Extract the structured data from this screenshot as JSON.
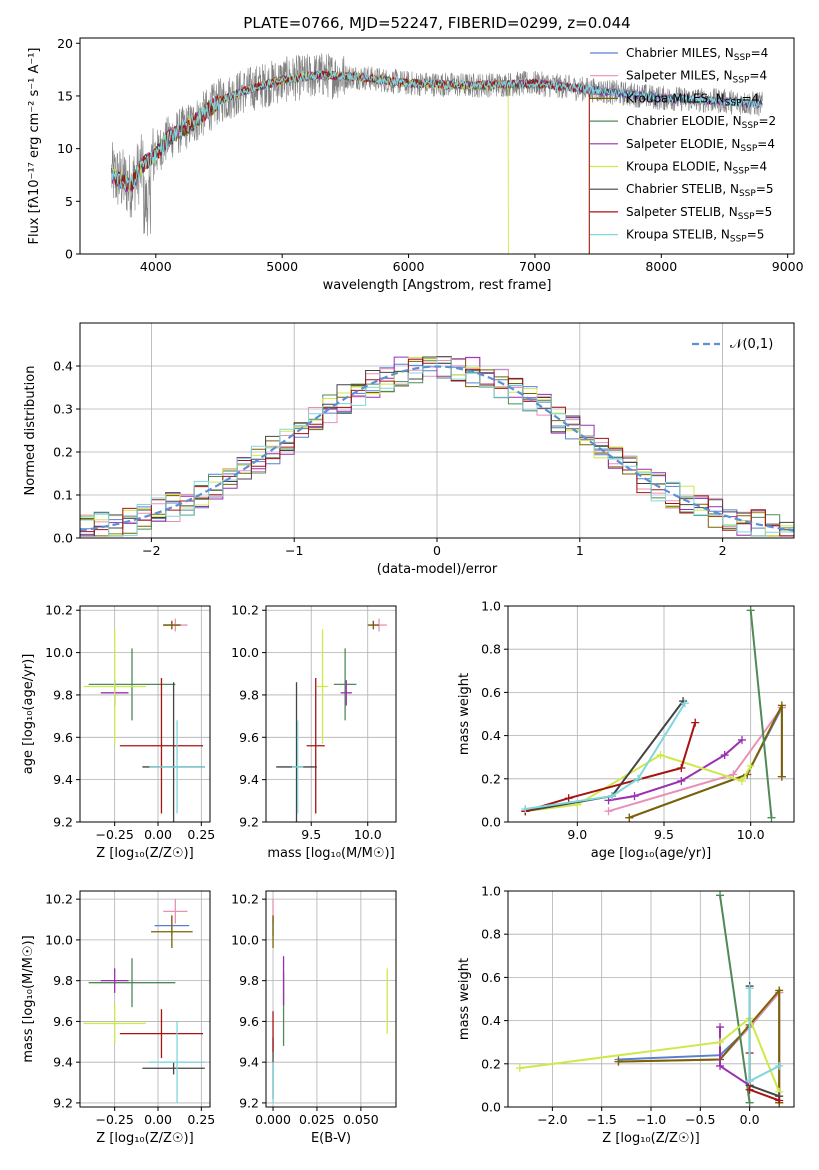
{
  "figure": {
    "title": "PLATE=0766, MJD=52247, FIBERID=0299, z=0.044"
  },
  "models": [
    {
      "name": "Chabrier MILES",
      "nssp": "4",
      "color": "#5a7fd1"
    },
    {
      "name": "Salpeter MILES",
      "nssp": "4",
      "color": "#e890b8"
    },
    {
      "name": "Kroupa MILES",
      "nssp": "4",
      "color": "#7a6200"
    },
    {
      "name": "Chabrier ELODIE",
      "nssp": "2",
      "color": "#4f8a56"
    },
    {
      "name": "Salpeter ELODIE",
      "nssp": "4",
      "color": "#9a2fb0"
    },
    {
      "name": "Kroupa ELODIE",
      "nssp": "4",
      "color": "#cfe84a"
    },
    {
      "name": "Chabrier STELIB",
      "nssp": "5",
      "color": "#444444"
    },
    {
      "name": "Salpeter STELIB",
      "nssp": "5",
      "color": "#a81212"
    },
    {
      "name": "Kroupa STELIB",
      "nssp": "5",
      "color": "#7fd6dc"
    }
  ],
  "chart_data": [
    {
      "id": "spectrum",
      "type": "line",
      "xlabel": "wavelength [Angstrom, rest frame]",
      "ylabel": "Flux [fλ10⁻¹⁷ erg cm⁻² s⁻¹ A⁻¹]",
      "xlim": [
        3400,
        9050
      ],
      "ylim": [
        0,
        20.5
      ],
      "xticks": [
        4000,
        5000,
        6000,
        7000,
        8000,
        9000
      ],
      "yticks": [
        0,
        5,
        10,
        15,
        20
      ],
      "data_color": "#808080",
      "data_envelope": {
        "x": [
          3650,
          3800,
          3900,
          4000,
          4100,
          4300,
          4500,
          4700,
          5000,
          5300,
          5600,
          6000,
          6500,
          7000,
          7500,
          8000,
          8500,
          8800
        ],
        "y": [
          7.5,
          6.5,
          8.5,
          9.5,
          11.0,
          12.5,
          14.5,
          15.5,
          16.5,
          17.0,
          16.8,
          16.2,
          16.0,
          16.2,
          15.5,
          14.8,
          14.5,
          14.2
        ]
      },
      "legend_position": "upper-right"
    },
    {
      "id": "residuals",
      "type": "step-histogram",
      "xlabel": "(data-model)/error",
      "ylabel": "Normed distribution",
      "xlim": [
        -2.5,
        2.5
      ],
      "ylim": [
        0,
        0.5
      ],
      "xticks": [
        -2,
        -1,
        0,
        1,
        2
      ],
      "yticks": [
        0.0,
        0.1,
        0.2,
        0.3,
        0.4
      ],
      "grid": true,
      "bin_width": 0.1,
      "reference_curve": {
        "label": "𝒩(0,1)",
        "style": "dashed",
        "color": "#5b8fd6"
      },
      "legend_position": "upper-right"
    },
    {
      "id": "z-vs-age",
      "type": "errorbar",
      "xlabel": "Z [log₁₀(Z/Z☉)]",
      "ylabel": "age  [log₁₀(age/yr)]",
      "xlim": [
        -0.45,
        0.3
      ],
      "ylim": [
        9.2,
        10.22
      ],
      "xticks": [
        -0.25,
        0.0,
        0.25
      ],
      "xticklabels": [
        "−0.25",
        "0.00",
        "0.25"
      ],
      "yticks": [
        9.2,
        9.4,
        9.6,
        9.8,
        10.0,
        10.2
      ],
      "grid": true,
      "points": [
        {
          "model": 0,
          "x": 0.08,
          "y": 10.13,
          "xerr": 0.05,
          "yerr": 0.02
        },
        {
          "model": 1,
          "x": 0.1,
          "y": 10.13,
          "xerr": 0.07,
          "yerr": 0.03
        },
        {
          "model": 2,
          "x": 0.08,
          "y": 10.13,
          "xerr": 0.05,
          "yerr": 0.02
        },
        {
          "model": 3,
          "x": -0.15,
          "y": 9.85,
          "xerr": 0.25,
          "yerr": 0.17
        },
        {
          "model": 4,
          "x": -0.25,
          "y": 9.81,
          "xerr": 0.08,
          "yerr": 0.06
        },
        {
          "model": 5,
          "x": -0.25,
          "y": 9.84,
          "xerr": 0.18,
          "yerr": 0.27
        },
        {
          "model": 6,
          "x": 0.09,
          "y": 9.46,
          "xerr": 0.18,
          "yerr": 0.4
        },
        {
          "model": 7,
          "x": 0.02,
          "y": 9.56,
          "xerr": 0.24,
          "yerr": 0.32
        },
        {
          "model": 8,
          "x": 0.11,
          "y": 9.46,
          "xerr": 0.16,
          "yerr": 0.22
        }
      ]
    },
    {
      "id": "mass-vs-age",
      "type": "errorbar",
      "xlabel": "mass [log₁₀(M/M☉)]",
      "ylabel": "",
      "xlim": [
        9.1,
        10.25
      ],
      "ylim": [
        9.2,
        10.22
      ],
      "xticks": [
        9.5,
        10.0
      ],
      "xticklabels": [
        "9.5",
        "10.0"
      ],
      "yticks": [
        9.2,
        9.4,
        9.6,
        9.8,
        10.0,
        10.2
      ],
      "grid": true,
      "points": [
        {
          "model": 0,
          "x": 10.05,
          "y": 10.13,
          "xerr": 0.05,
          "yerr": 0.02
        },
        {
          "model": 1,
          "x": 10.1,
          "y": 10.13,
          "xerr": 0.07,
          "yerr": 0.03
        },
        {
          "model": 2,
          "x": 10.05,
          "y": 10.13,
          "xerr": 0.05,
          "yerr": 0.02
        },
        {
          "model": 3,
          "x": 9.8,
          "y": 9.85,
          "xerr": 0.1,
          "yerr": 0.17
        },
        {
          "model": 4,
          "x": 9.81,
          "y": 9.81,
          "xerr": 0.05,
          "yerr": 0.06
        },
        {
          "model": 5,
          "x": 9.6,
          "y": 9.84,
          "xerr": 0.05,
          "yerr": 0.27
        },
        {
          "model": 6,
          "x": 9.37,
          "y": 9.46,
          "xerr": 0.18,
          "yerr": 0.4
        },
        {
          "model": 7,
          "x": 9.54,
          "y": 9.56,
          "xerr": 0.08,
          "yerr": 0.32
        },
        {
          "model": 8,
          "x": 9.38,
          "y": 9.46,
          "xerr": 0.05,
          "yerr": 0.22
        }
      ]
    },
    {
      "id": "age-vs-weight",
      "type": "line",
      "xlabel": "age  [log₁₀(age/yr)]",
      "ylabel": "mass weight",
      "xlim": [
        8.6,
        10.25
      ],
      "ylim": [
        0,
        1.0
      ],
      "xticks": [
        9.0,
        9.5,
        10.0
      ],
      "yticks": [
        0.0,
        0.2,
        0.4,
        0.6,
        0.8,
        1.0
      ],
      "grid": true,
      "series": [
        {
          "model": 0,
          "x": [
            9.3,
            9.98,
            10.18,
            10.18
          ],
          "y": [
            0.02,
            0.22,
            0.53,
            0.21
          ]
        },
        {
          "model": 1,
          "x": [
            9.18,
            9.9,
            10.18,
            10.18
          ],
          "y": [
            0.05,
            0.22,
            0.53,
            0.21
          ]
        },
        {
          "model": 2,
          "x": [
            9.3,
            9.98,
            10.18,
            10.18
          ],
          "y": [
            0.02,
            0.22,
            0.54,
            0.21
          ]
        },
        {
          "model": 3,
          "x": [
            10.0,
            10.12
          ],
          "y": [
            0.98,
            0.02
          ]
        },
        {
          "model": 4,
          "x": [
            9.18,
            9.33,
            9.6,
            9.85,
            9.95
          ],
          "y": [
            0.1,
            0.12,
            0.19,
            0.31,
            0.38
          ]
        },
        {
          "model": 5,
          "x": [
            8.7,
            9.0,
            9.48,
            9.95,
            10.0
          ],
          "y": [
            0.05,
            0.08,
            0.31,
            0.19,
            0.26
          ]
        },
        {
          "model": 6,
          "x": [
            8.7,
            9.2,
            9.61
          ],
          "y": [
            0.05,
            0.12,
            0.56
          ]
        },
        {
          "model": 7,
          "x": [
            8.7,
            8.95,
            9.6,
            9.68
          ],
          "y": [
            0.05,
            0.11,
            0.25,
            0.46
          ]
        },
        {
          "model": 8,
          "x": [
            8.7,
            9.2,
            9.35,
            9.62
          ],
          "y": [
            0.06,
            0.12,
            0.2,
            0.55
          ]
        }
      ]
    },
    {
      "id": "z-vs-mass",
      "type": "errorbar",
      "xlabel": "Z [log₁₀(Z/Z☉)]",
      "ylabel": "mass [log₁₀(M/M☉)]",
      "xlim": [
        -0.45,
        0.3
      ],
      "ylim": [
        9.18,
        10.24
      ],
      "xticks": [
        -0.25,
        0.0,
        0.25
      ],
      "xticklabels": [
        "−0.25",
        "0.00",
        "0.25"
      ],
      "yticks": [
        9.2,
        9.4,
        9.6,
        9.8,
        10.0,
        10.2
      ],
      "grid": true,
      "points": [
        {
          "model": 0,
          "x": 0.08,
          "y": 10.07,
          "xerr": 0.1,
          "yerr": 0.05
        },
        {
          "model": 1,
          "x": 0.1,
          "y": 10.14,
          "xerr": 0.07,
          "yerr": 0.06
        },
        {
          "model": 2,
          "x": 0.08,
          "y": 10.04,
          "xerr": 0.12,
          "yerr": 0.08
        },
        {
          "model": 3,
          "x": -0.15,
          "y": 9.79,
          "xerr": 0.25,
          "yerr": 0.12
        },
        {
          "model": 4,
          "x": -0.25,
          "y": 9.8,
          "xerr": 0.08,
          "yerr": 0.06
        },
        {
          "model": 5,
          "x": -0.25,
          "y": 9.59,
          "xerr": 0.18,
          "yerr": 0.1
        },
        {
          "model": 6,
          "x": 0.09,
          "y": 9.37,
          "xerr": 0.18,
          "yerr": 0.03
        },
        {
          "model": 7,
          "x": 0.02,
          "y": 9.54,
          "xerr": 0.24,
          "yerr": 0.12
        },
        {
          "model": 8,
          "x": 0.11,
          "y": 9.4,
          "xerr": 0.16,
          "yerr": 0.2
        }
      ]
    },
    {
      "id": "ebv-vs-mass",
      "type": "errorbar",
      "xlabel": "E(B-V)",
      "ylabel": "",
      "xlim": [
        -0.004,
        0.07
      ],
      "ylim": [
        9.18,
        10.24
      ],
      "xticks": [
        0.0,
        0.025,
        0.05
      ],
      "xticklabels": [
        "0.000",
        "0.025",
        "0.050"
      ],
      "yticks": [
        9.2,
        9.4,
        9.6,
        9.8,
        10.0,
        10.2
      ],
      "grid": true,
      "points": [
        {
          "model": 0,
          "x": 0.0,
          "y": 10.07,
          "xerr": 0.0,
          "yerr": 0.05
        },
        {
          "model": 1,
          "x": 0.0,
          "y": 10.14,
          "xerr": 0.0,
          "yerr": 0.06
        },
        {
          "model": 2,
          "x": 0.0,
          "y": 10.04,
          "xerr": 0.0,
          "yerr": 0.08
        },
        {
          "model": 3,
          "x": 0.006,
          "y": 9.66,
          "xerr": 0.0,
          "yerr": 0.18
        },
        {
          "model": 4,
          "x": 0.006,
          "y": 9.8,
          "xerr": 0.0,
          "yerr": 0.12
        },
        {
          "model": 5,
          "x": 0.065,
          "y": 9.7,
          "xerr": 0.0,
          "yerr": 0.16
        },
        {
          "model": 6,
          "x": 0.0,
          "y": 9.37,
          "xerr": 0.0,
          "yerr": 0.15
        },
        {
          "model": 7,
          "x": 0.0,
          "y": 9.55,
          "xerr": 0.0,
          "yerr": 0.1
        },
        {
          "model": 8,
          "x": 0.0,
          "y": 9.3,
          "xerr": 0.0,
          "yerr": 0.1
        }
      ]
    },
    {
      "id": "z-vs-weight",
      "type": "line",
      "xlabel": "Z [log₁₀(Z/Z☉)]",
      "ylabel": "mass weight",
      "xlim": [
        -2.45,
        0.45
      ],
      "ylim": [
        0,
        1.0
      ],
      "xticks": [
        -2.0,
        -1.5,
        -1.0,
        -0.5,
        0.0
      ],
      "xticklabels": [
        "−2.0",
        "−1.5",
        "−1.0",
        "−0.5",
        "0.0"
      ],
      "yticks": [
        0.0,
        0.2,
        0.4,
        0.6,
        0.8,
        1.0
      ],
      "grid": true,
      "series": [
        {
          "model": 0,
          "x": [
            -1.33,
            -0.3,
            0.0,
            0.3,
            0.3
          ],
          "y": [
            0.22,
            0.24,
            0.37,
            0.53,
            0.02
          ]
        },
        {
          "model": 1,
          "x": [
            -1.33,
            -0.3,
            0.0,
            0.3,
            0.3
          ],
          "y": [
            0.21,
            0.22,
            0.37,
            0.53,
            0.02
          ]
        },
        {
          "model": 2,
          "x": [
            -1.33,
            -0.3,
            0.0,
            0.3,
            0.3
          ],
          "y": [
            0.21,
            0.22,
            0.38,
            0.54,
            0.02
          ]
        },
        {
          "model": 3,
          "x": [
            -0.3,
            0.0
          ],
          "y": [
            0.98,
            0.02
          ]
        },
        {
          "model": 4,
          "x": [
            -0.3,
            -0.3,
            0.0
          ],
          "y": [
            0.37,
            0.19,
            0.1
          ]
        },
        {
          "model": 5,
          "x": [
            -2.33,
            -0.3,
            0.0,
            0.3
          ],
          "y": [
            0.18,
            0.3,
            0.41,
            0.07
          ]
        },
        {
          "model": 6,
          "x": [
            0.0,
            0.0,
            0.3
          ],
          "y": [
            0.56,
            0.1,
            0.05
          ]
        },
        {
          "model": 7,
          "x": [
            0.0,
            0.0,
            0.3
          ],
          "y": [
            0.25,
            0.08,
            0.03
          ]
        },
        {
          "model": 8,
          "x": [
            0.0,
            0.0,
            0.3
          ],
          "y": [
            0.55,
            0.12,
            0.19
          ]
        }
      ]
    }
  ]
}
